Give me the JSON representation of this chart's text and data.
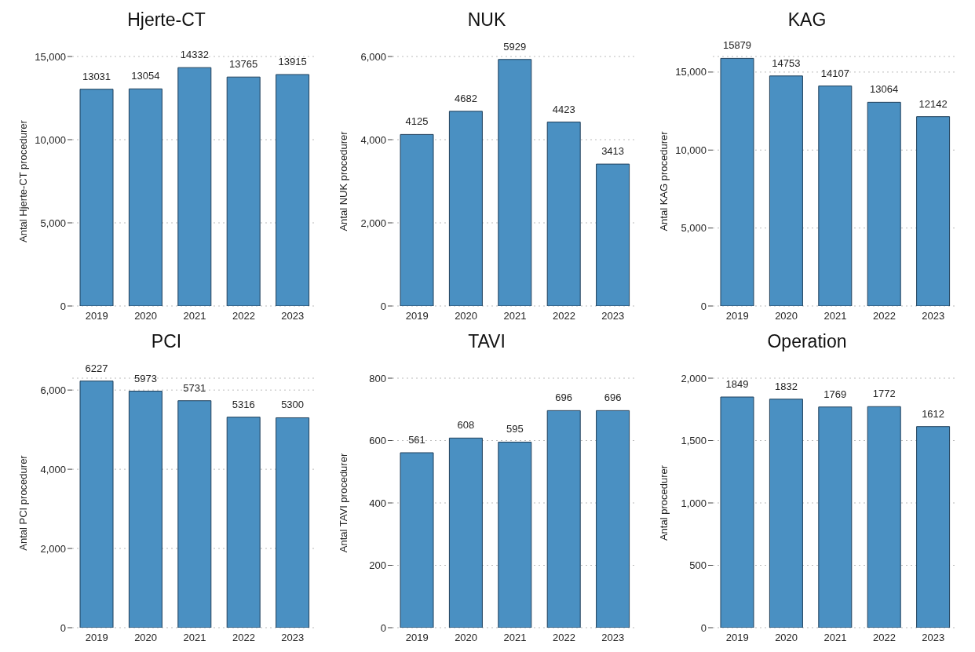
{
  "chart_data": [
    {
      "type": "bar",
      "title": "Hjerte-CT",
      "ylabel": "Antal Hjerte-CT procedurer",
      "categories": [
        "2019",
        "2020",
        "2021",
        "2022",
        "2023"
      ],
      "values": [
        13031,
        13054,
        14332,
        13765,
        13915
      ],
      "color": "#4a90c2",
      "ylim": [
        0,
        15000
      ],
      "yticks": [
        0,
        {
          "value": 5000,
          "label": "5,000"
        },
        {
          "value": 10000,
          "label": "10,000"
        },
        {
          "value": 15000,
          "label": "15,000"
        }
      ],
      "grid": "y",
      "data_labels": true
    },
    {
      "type": "bar",
      "title": "NUK",
      "ylabel": "Antal NUK procedurer",
      "categories": [
        "2019",
        "2020",
        "2021",
        "2022",
        "2023"
      ],
      "values": [
        4125,
        4682,
        5929,
        4423,
        3413
      ],
      "color": "#4a90c2",
      "ylim": [
        0,
        6000
      ],
      "yticks": [
        0,
        {
          "value": 2000,
          "label": "2,000"
        },
        {
          "value": 4000,
          "label": "4,000"
        },
        {
          "value": 6000,
          "label": "6,000"
        }
      ],
      "grid": "y",
      "data_labels": true
    },
    {
      "type": "bar",
      "title": "KAG",
      "ylabel": "Antal KAG procedurer",
      "categories": [
        "2019",
        "2020",
        "2021",
        "2022",
        "2023"
      ],
      "values": [
        15879,
        14753,
        14107,
        13064,
        12142
      ],
      "color": "#4a90c2",
      "ylim": [
        0,
        16000
      ],
      "yticks": [
        0,
        {
          "value": 5000,
          "label": "5,000"
        },
        {
          "value": 10000,
          "label": "10,000"
        },
        {
          "value": 15000,
          "label": "15,000"
        }
      ],
      "grid": "y",
      "data_labels": true
    },
    {
      "type": "bar",
      "title": "PCI",
      "ylabel": "Antal PCI procedurer",
      "categories": [
        "2019",
        "2020",
        "2021",
        "2022",
        "2023"
      ],
      "values": [
        6227,
        5973,
        5731,
        5316,
        5300
      ],
      "color": "#4a90c2",
      "ylim": [
        0,
        6300
      ],
      "yticks": [
        0,
        {
          "value": 2000,
          "label": "2,000"
        },
        {
          "value": 4000,
          "label": "4,000"
        },
        {
          "value": 6000,
          "label": "6,000"
        }
      ],
      "grid": "y",
      "data_labels": true
    },
    {
      "type": "bar",
      "title": "TAVI",
      "ylabel": "Antal TAVI procedurer",
      "categories": [
        "2019",
        "2020",
        "2021",
        "2022",
        "2023"
      ],
      "values": [
        561,
        608,
        595,
        696,
        696
      ],
      "color": "#4a90c2",
      "ylim": [
        0,
        800
      ],
      "yticks": [
        0,
        200,
        400,
        600,
        800
      ],
      "grid": "y",
      "data_labels": true
    },
    {
      "type": "bar",
      "title": "Operation",
      "ylabel": "Antal procedurer",
      "categories": [
        "2019",
        "2020",
        "2021",
        "2022",
        "2023"
      ],
      "values": [
        1849,
        1832,
        1769,
        1772,
        1612
      ],
      "color": "#4a90c2",
      "ylim": [
        0,
        2000
      ],
      "yticks": [
        0,
        500,
        {
          "value": 1000,
          "label": "1,000"
        },
        {
          "value": 1500,
          "label": "1,500"
        },
        {
          "value": 2000,
          "label": "2,000"
        }
      ],
      "grid": "y",
      "data_labels": true
    }
  ]
}
